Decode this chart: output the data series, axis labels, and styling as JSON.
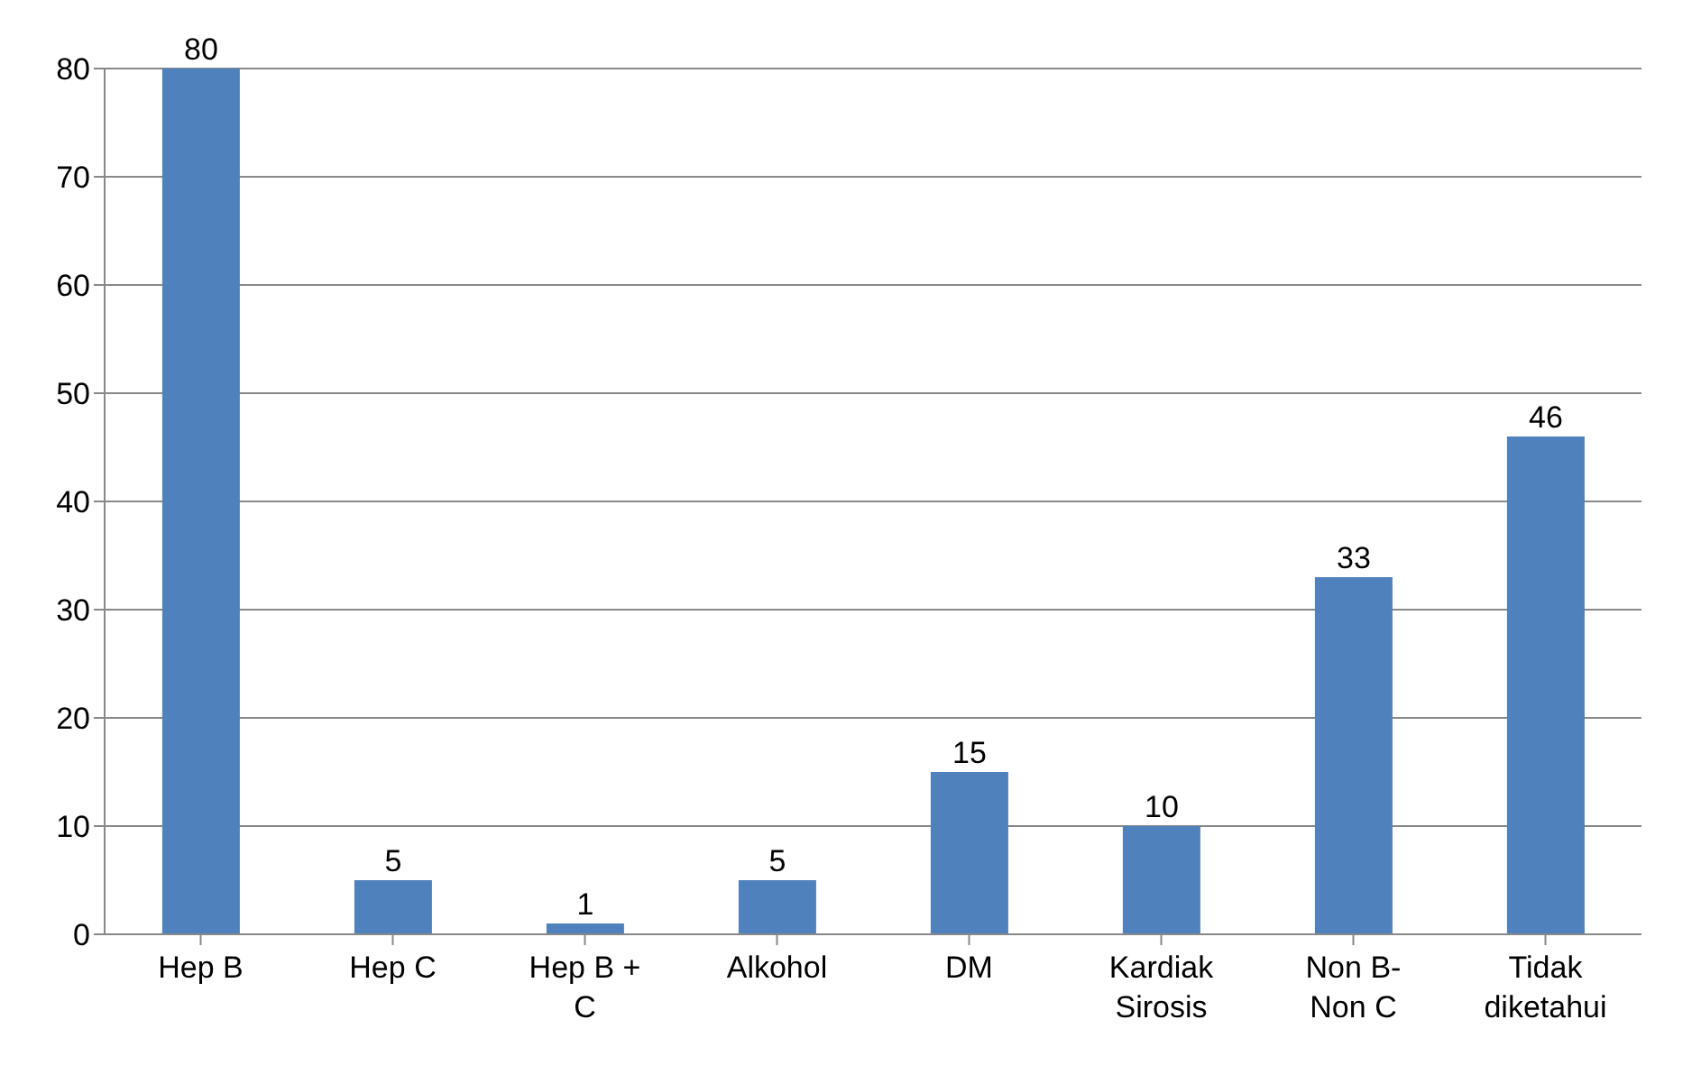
{
  "chart_data": {
    "type": "bar",
    "categories": [
      "Hep B",
      "Hep C",
      "Hep B + C",
      "Alkohol",
      "DM",
      "Kardiak Sirosis",
      "Non B-Non C",
      "Tidak diketahui"
    ],
    "values": [
      80,
      5,
      1,
      5,
      15,
      10,
      33,
      46
    ],
    "color": "#4f81bd",
    "ylim": [
      0,
      80
    ],
    "yticks": [
      0,
      10,
      20,
      30,
      40,
      50,
      60,
      70,
      80
    ],
    "grid": "y",
    "data_labels": true
  }
}
